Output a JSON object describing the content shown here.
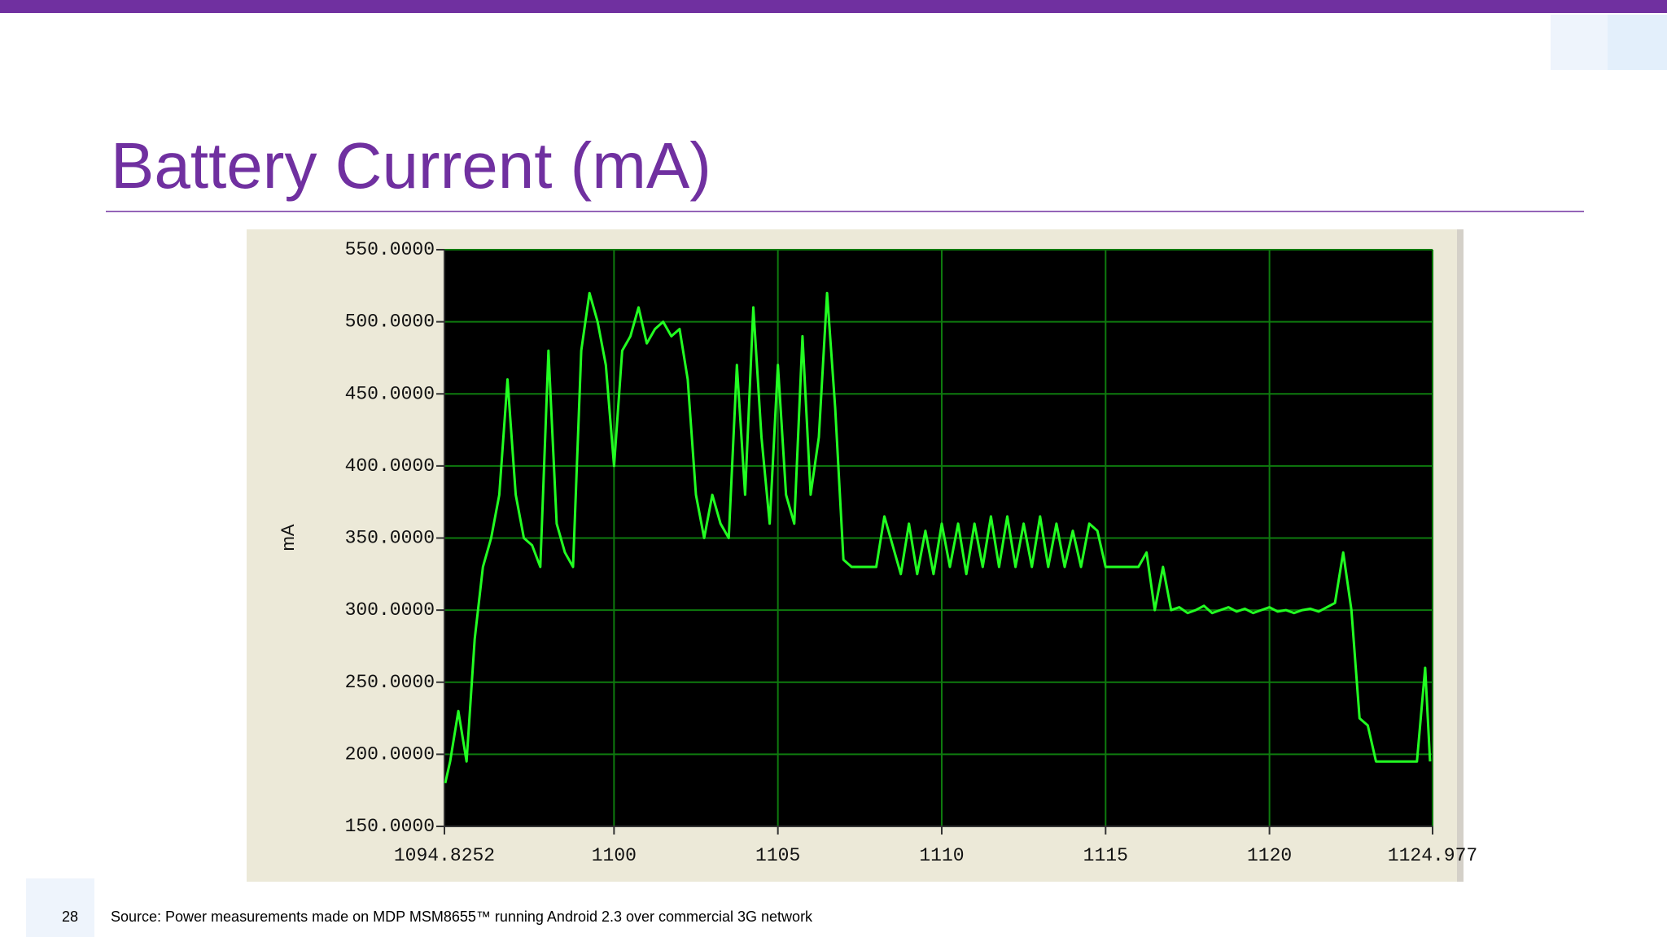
{
  "chart_data": {
    "type": "line",
    "title": "Battery Current (mA)",
    "y_label": "mA",
    "footer_page": "28",
    "source": "Source: Power measurements made on MDP MSM8655™  running Android 2.3 over commercial 3G network",
    "xlim": [
      1094.8252,
      1124.977
    ],
    "xticks": [
      1094.8252,
      1100,
      1105,
      1110,
      1115,
      1120,
      1124.977
    ],
    "ylim": [
      150,
      550
    ],
    "yticks": [
      {
        "value": 150,
        "label": "150.0000"
      },
      {
        "value": 200,
        "label": "200.0000"
      },
      {
        "value": 250,
        "label": "250.0000"
      },
      {
        "value": 300,
        "label": "300.0000"
      },
      {
        "value": 350,
        "label": "350.0000"
      },
      {
        "value": 400,
        "label": "400.0000"
      },
      {
        "value": 450,
        "label": "450.0000"
      },
      {
        "value": 500,
        "label": "500.0000"
      },
      {
        "value": 550,
        "label": "550.0000"
      }
    ],
    "grid": true,
    "series": [
      {
        "color": "#22ff22",
        "x": [
          1094.85,
          1095,
          1095.25,
          1095.5,
          1095.75,
          1096,
          1096.25,
          1096.5,
          1096.75,
          1097,
          1097.25,
          1097.5,
          1097.75,
          1098,
          1098.25,
          1098.5,
          1098.75,
          1099,
          1099.25,
          1099.5,
          1099.75,
          1100,
          1100.25,
          1100.5,
          1100.75,
          1101,
          1101.25,
          1101.5,
          1101.75,
          1102,
          1102.25,
          1102.5,
          1102.75,
          1103,
          1103.25,
          1103.5,
          1103.75,
          1104,
          1104.25,
          1104.5,
          1104.75,
          1105,
          1105.25,
          1105.5,
          1105.75,
          1106,
          1106.25,
          1106.5,
          1106.75,
          1107,
          1107.25,
          1107.5,
          1107.75,
          1108,
          1108.25,
          1108.5,
          1108.75,
          1109,
          1109.25,
          1109.5,
          1109.75,
          1110,
          1110.25,
          1110.5,
          1110.75,
          1111,
          1111.25,
          1111.5,
          1111.75,
          1112,
          1112.25,
          1112.5,
          1112.75,
          1113,
          1113.25,
          1113.5,
          1113.75,
          1114,
          1114.25,
          1114.5,
          1114.75,
          1115,
          1115.25,
          1115.5,
          1115.75,
          1116,
          1116.25,
          1116.5,
          1116.75,
          1117,
          1117.25,
          1117.5,
          1117.75,
          1118,
          1118.25,
          1118.5,
          1118.75,
          1119,
          1119.25,
          1119.5,
          1119.75,
          1120,
          1120.25,
          1120.5,
          1120.75,
          1121,
          1121.25,
          1121.5,
          1121.75,
          1122,
          1122.25,
          1122.5,
          1122.75,
          1123,
          1123.25,
          1123.5,
          1123.75,
          1124,
          1124.25,
          1124.5,
          1124.75,
          1124.9
        ],
        "values": [
          180,
          195,
          230,
          195,
          280,
          330,
          350,
          380,
          460,
          380,
          350,
          345,
          330,
          480,
          360,
          340,
          330,
          480,
          520,
          500,
          470,
          400,
          480,
          490,
          510,
          485,
          495,
          500,
          490,
          495,
          460,
          380,
          350,
          380,
          360,
          350,
          470,
          380,
          510,
          420,
          360,
          470,
          380,
          360,
          490,
          380,
          420,
          520,
          440,
          335,
          330,
          330,
          330,
          330,
          365,
          345,
          325,
          360,
          325,
          355,
          325,
          360,
          330,
          360,
          325,
          360,
          330,
          365,
          330,
          365,
          330,
          360,
          330,
          365,
          330,
          360,
          330,
          355,
          330,
          360,
          355,
          330,
          330,
          330,
          330,
          330,
          340,
          300,
          330,
          300,
          302,
          298,
          300,
          303,
          298,
          300,
          302,
          299,
          301,
          298,
          300,
          302,
          299,
          300,
          298,
          300,
          301,
          299,
          302,
          305,
          340,
          300,
          225,
          220,
          195,
          195,
          195,
          195,
          195,
          195,
          260,
          195
        ]
      }
    ]
  }
}
